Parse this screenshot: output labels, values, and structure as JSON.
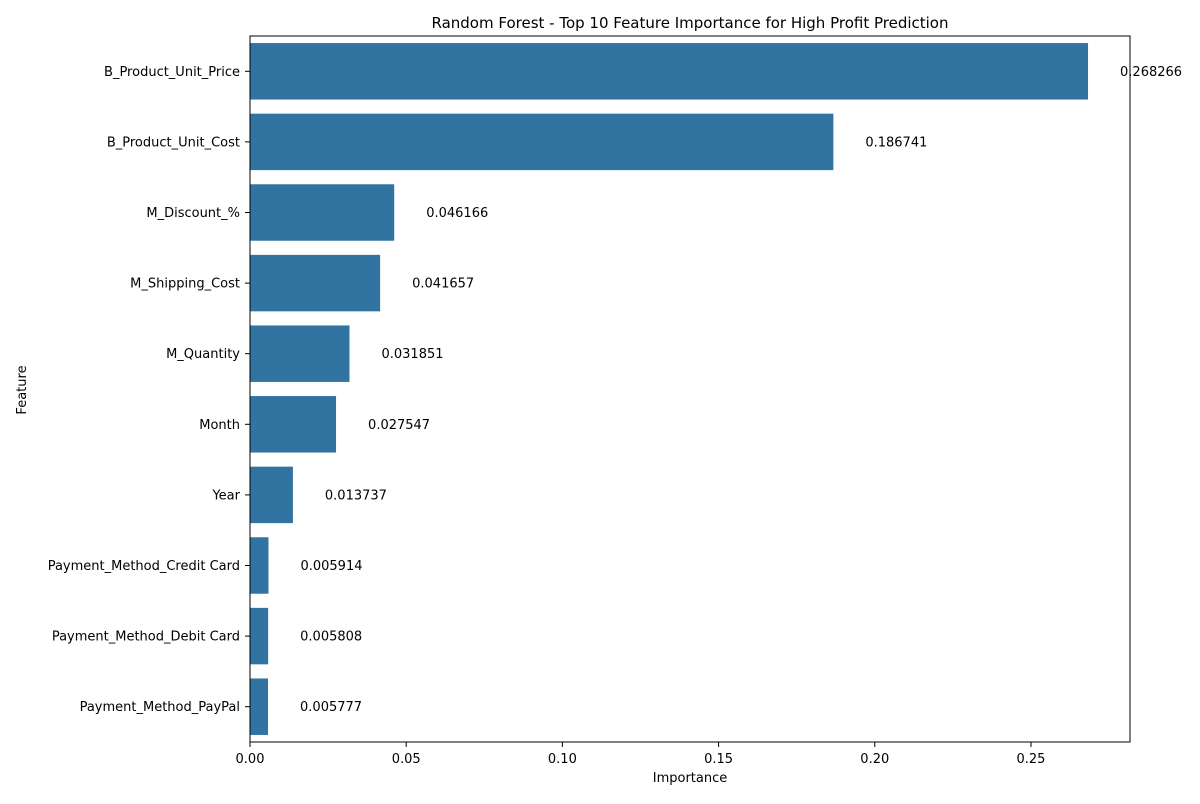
{
  "chart_data": {
    "type": "bar",
    "orientation": "horizontal",
    "title": "Random Forest - Top 10 Feature Importance for High Profit Prediction",
    "xlabel": "Importance",
    "ylabel": "Feature",
    "categories": [
      "B_Product_Unit_Price",
      "B_Product_Unit_Cost",
      "M_Discount_%",
      "M_Shipping_Cost",
      "M_Quantity",
      "Month",
      "Year",
      "Payment_Method_Credit Card",
      "Payment_Method_Debit Card",
      "Payment_Method_PayPal"
    ],
    "values": [
      0.268266,
      0.186741,
      0.046166,
      0.041657,
      0.031851,
      0.027547,
      0.013737,
      0.005914,
      0.005808,
      0.005777
    ],
    "value_labels": [
      "0.268266",
      "0.186741",
      "0.046166",
      "0.041657",
      "0.031851",
      "0.027547",
      "0.013737",
      "0.005914",
      "0.005808",
      "0.005777"
    ],
    "xlim": [
      0,
      0.2817
    ],
    "xticks": [
      0.0,
      0.05,
      0.1,
      0.15,
      0.2,
      0.25
    ],
    "xtick_labels": [
      "0.00",
      "0.05",
      "0.10",
      "0.15",
      "0.20",
      "0.25"
    ],
    "bar_color": "#3274a1",
    "grid": false,
    "legend": "none"
  }
}
